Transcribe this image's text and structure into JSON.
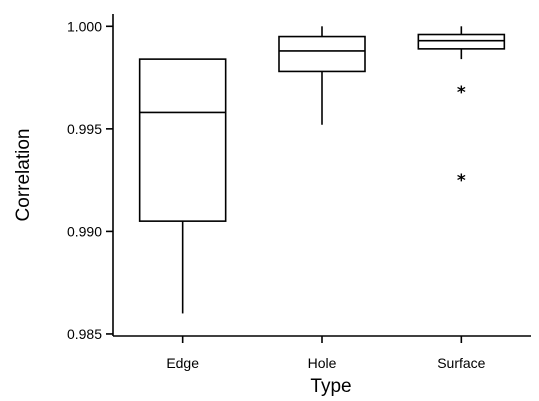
{
  "chart_data": {
    "type": "box",
    "title": "",
    "xlabel": "Type",
    "ylabel": "Correlation",
    "ylim": [
      0.9849,
      1.0006
    ],
    "yticks": [
      0.985,
      0.99,
      0.995,
      1.0
    ],
    "ytick_labels": [
      "0.985",
      "0.990",
      "0.995",
      "1.000"
    ],
    "grid": false,
    "categories": [
      "Edge",
      "Hole",
      "Surface"
    ],
    "boxes": [
      {
        "category": "Edge",
        "whisker_low": 0.986,
        "q1": 0.9905,
        "median": 0.9958,
        "q3": 0.9984,
        "whisker_high": 0.9984,
        "outliers": []
      },
      {
        "category": "Hole",
        "whisker_low": 0.9952,
        "q1": 0.9978,
        "median": 0.9988,
        "q3": 0.9995,
        "whisker_high": 1.0,
        "outliers": []
      },
      {
        "category": "Surface",
        "whisker_low": 0.9984,
        "q1": 0.9989,
        "median": 0.9993,
        "q3": 0.9996,
        "whisker_high": 1.0,
        "outliers": [
          0.9969,
          0.9926
        ]
      }
    ],
    "outlier_marker": "*"
  }
}
